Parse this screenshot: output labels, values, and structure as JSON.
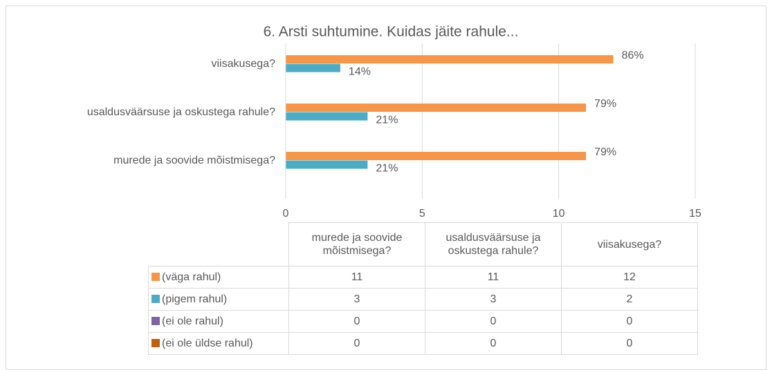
{
  "chart_data": {
    "type": "bar",
    "orientation": "horizontal",
    "title": "6. Arsti suhtumine. Kuidas jäite rahule...",
    "categories": [
      "murede ja soovide mõistmisega?",
      "usaldusväärsuse ja oskustega rahule?",
      "viisakusega?"
    ],
    "series": [
      {
        "name": "(väga rahul)",
        "color": "#f79646",
        "values": [
          11,
          11,
          12
        ],
        "percent_labels": [
          "79%",
          "79%",
          "86%"
        ]
      },
      {
        "name": "(pigem rahul)",
        "color": "#4bacc6",
        "values": [
          3,
          3,
          2
        ],
        "percent_labels": [
          "21%",
          "21%",
          "14%"
        ]
      },
      {
        "name": "(ei ole rahul)",
        "color": "#8064a2",
        "values": [
          0,
          0,
          0
        ]
      },
      {
        "name": "(ei ole üldse rahul)",
        "color": "#c0600a",
        "values": [
          0,
          0,
          0
        ]
      }
    ],
    "xlim": [
      0,
      15
    ],
    "xticks": [
      0,
      5,
      10,
      15
    ],
    "grid": true,
    "data_table": true
  }
}
